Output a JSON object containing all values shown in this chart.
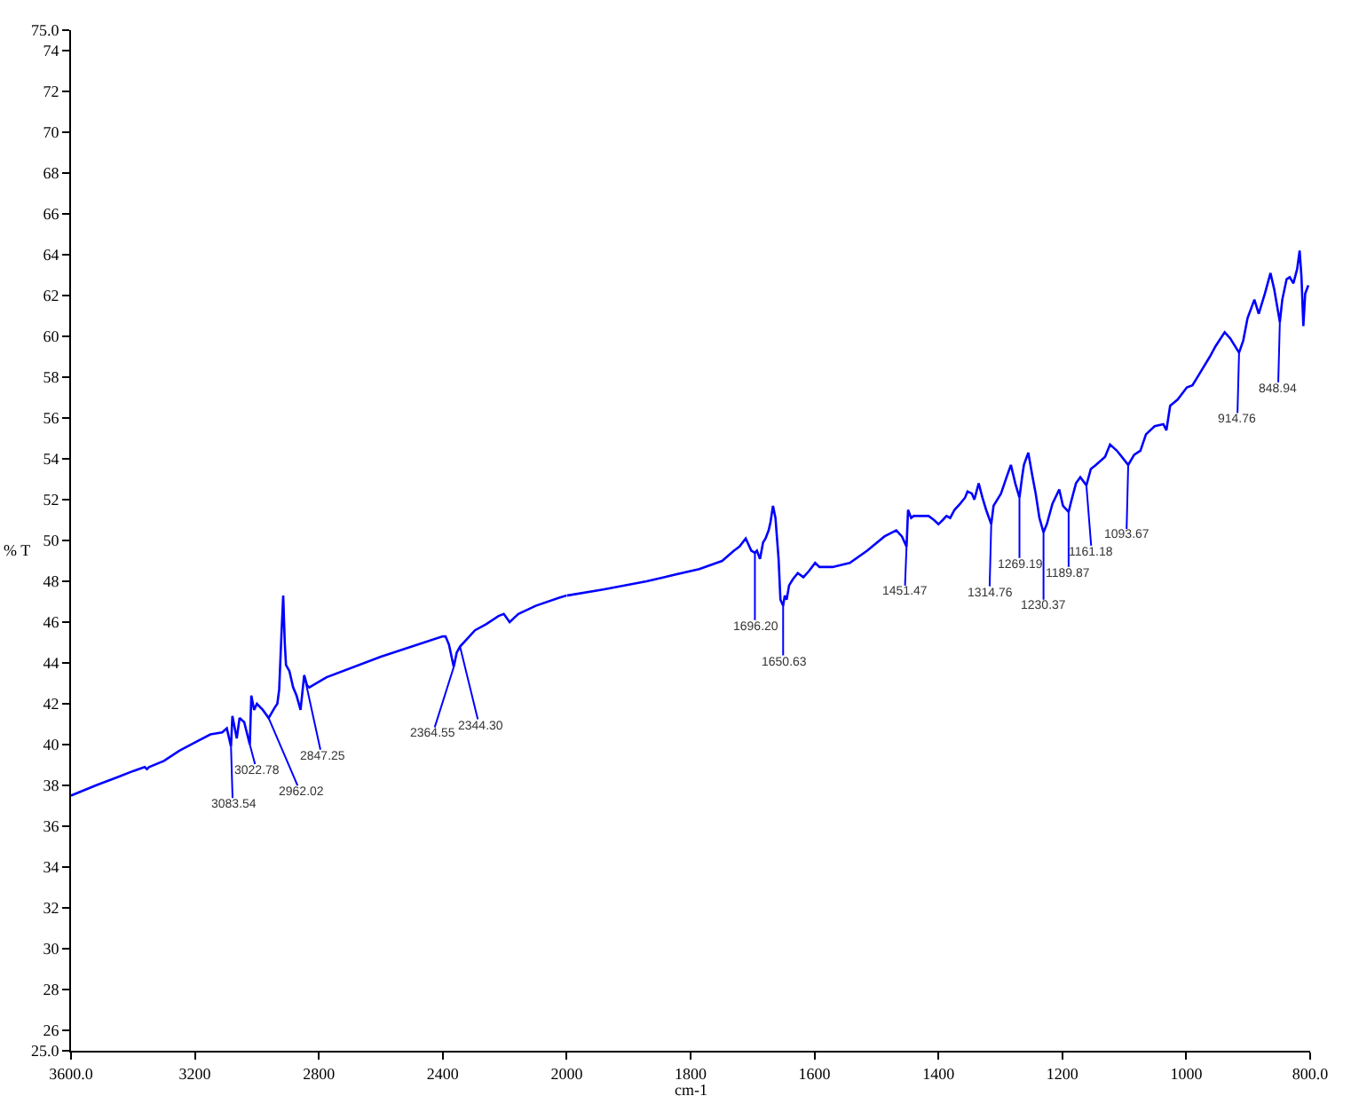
{
  "chart_data": [
    {
      "type": "line",
      "ylabel": "% T",
      "color": "#0000ff",
      "x": [
        3600,
        3520,
        3450,
        3400,
        3362,
        3355,
        3348,
        3300,
        3250,
        3200,
        3150,
        3112,
        3097,
        3083.54,
        3079,
        3065,
        3056,
        3041,
        3022.78,
        3018,
        3009,
        3000,
        2981,
        2962.02,
        2943,
        2934,
        2928,
        2921,
        2915,
        2910,
        2906,
        2895,
        2883,
        2872,
        2859,
        2847.25,
        2838,
        2831,
        2775,
        2600,
        2500,
        2400,
        2391,
        2380,
        2364.55,
        2355,
        2344.3,
        2320,
        2296,
        2260,
        2220,
        2203,
        2184,
        2170,
        2156,
        2100,
        2024,
        2000
      ],
      "values": [
        37.5,
        38.0,
        38.4,
        38.7,
        38.9,
        38.8,
        38.9,
        39.2,
        39.7,
        40.1,
        40.5,
        40.6,
        40.8,
        39.9,
        41.4,
        40.3,
        41.3,
        41.1,
        40.0,
        42.4,
        41.7,
        42.0,
        41.7,
        41.3,
        41.8,
        42.0,
        42.7,
        45.3,
        47.3,
        45.0,
        43.9,
        43.6,
        42.8,
        42.4,
        41.7,
        43.4,
        42.9,
        42.8,
        43.3,
        44.3,
        44.8,
        45.3,
        45.3,
        44.9,
        43.8,
        44.5,
        44.8,
        45.2,
        45.6,
        45.9,
        46.3,
        46.4,
        46.0,
        46.2,
        46.4,
        46.8,
        47.2,
        47.3
      ],
      "xlim": [
        3600,
        2000
      ],
      "xticks": [
        {
          "value": 3600,
          "label": "3600.0"
        },
        3200,
        2800,
        2400
      ],
      "ylim": [
        25,
        75
      ],
      "yticks": [
        {
          "value": 25,
          "label": "25.0"
        },
        26,
        28,
        30,
        32,
        34,
        36,
        38,
        40,
        42,
        44,
        46,
        48,
        50,
        52,
        54,
        56,
        58,
        60,
        62,
        64,
        66,
        68,
        70,
        72,
        74,
        {
          "value": 75,
          "label": "75.0"
        }
      ],
      "annotations": [
        {
          "text": "3083.54",
          "x": 3083.54,
          "y": 39.9
        },
        {
          "text": "3022.78",
          "x": 3022.78,
          "y": 40.0
        },
        {
          "text": "2962.02",
          "x": 2962.02,
          "y": 41.3
        },
        {
          "text": "2847.25",
          "x": 2847.25,
          "y": 43.4
        },
        {
          "text": "2364.55",
          "x": 2364.55,
          "y": 43.8
        },
        {
          "text": "2344.30",
          "x": 2344.3,
          "y": 44.8
        }
      ]
    },
    {
      "type": "line",
      "xlabel": "cm-1",
      "color": "#0000ff",
      "tick_labels": "x",
      "x": [
        2000,
        1941,
        1871,
        1843,
        1786,
        1749,
        1730,
        1721,
        1711,
        1702,
        1696.2,
        1693,
        1688,
        1683,
        1679,
        1674,
        1671,
        1667,
        1663,
        1658,
        1655,
        1650.63,
        1648,
        1645,
        1641,
        1635,
        1627,
        1618,
        1609,
        1599,
        1592,
        1571,
        1543,
        1515,
        1487,
        1468,
        1459,
        1451.47,
        1449,
        1444,
        1440,
        1416,
        1407,
        1400,
        1393,
        1387,
        1381,
        1374,
        1365,
        1357,
        1353,
        1346,
        1342,
        1335,
        1329,
        1323,
        1314.76,
        1311,
        1299,
        1290,
        1283,
        1276,
        1269.19,
        1265,
        1262,
        1255,
        1248,
        1243,
        1237,
        1230.37,
        1225,
        1216,
        1205,
        1199,
        1189.87,
        1185,
        1178,
        1171,
        1161.18,
        1154,
        1146,
        1131,
        1123,
        1112,
        1093.67,
        1084,
        1074,
        1065,
        1051,
        1037,
        1032,
        1026,
        1014,
        999,
        990,
        976,
        962,
        953,
        938,
        929,
        914.76,
        908,
        901,
        890,
        883,
        873,
        864,
        858,
        848.94,
        845,
        838,
        833,
        827,
        821,
        817,
        814,
        811,
        808,
        803
      ],
      "values": [
        47.3,
        47.6,
        48.0,
        48.2,
        48.6,
        49.0,
        49.5,
        49.7,
        50.1,
        49.5,
        49.4,
        49.5,
        49.1,
        49.9,
        50.1,
        50.5,
        50.9,
        51.7,
        51.1,
        49.1,
        47.1,
        46.8,
        47.3,
        47.1,
        47.8,
        48.1,
        48.4,
        48.2,
        48.5,
        48.9,
        48.7,
        48.7,
        48.9,
        49.5,
        50.2,
        50.5,
        50.2,
        49.7,
        51.5,
        51.1,
        51.2,
        51.2,
        51.0,
        50.8,
        51.0,
        51.2,
        51.1,
        51.5,
        51.8,
        52.1,
        52.4,
        52.3,
        52.0,
        52.8,
        52.1,
        51.5,
        50.8,
        51.7,
        52.3,
        53.1,
        53.7,
        52.8,
        52.1,
        53.1,
        53.7,
        54.3,
        53.1,
        52.3,
        51.1,
        50.4,
        50.8,
        51.8,
        52.5,
        51.7,
        51.4,
        52.0,
        52.8,
        53.1,
        52.7,
        53.5,
        53.7,
        54.1,
        54.7,
        54.4,
        53.7,
        54.2,
        54.4,
        55.2,
        55.6,
        55.7,
        55.4,
        56.6,
        56.9,
        57.5,
        57.6,
        58.3,
        59.0,
        59.5,
        60.2,
        59.9,
        59.2,
        59.8,
        60.9,
        61.8,
        61.1,
        62.1,
        63.1,
        62.3,
        60.7,
        61.8,
        62.8,
        62.9,
        62.6,
        63.3,
        64.2,
        62.9,
        60.5,
        62.1,
        62.5
      ],
      "xlim": [
        2000,
        800
      ],
      "xticks": [
        2000,
        1800,
        1600,
        1400,
        1200,
        1000,
        {
          "value": 800,
          "label": "800.0"
        }
      ],
      "ylim": [
        25,
        75
      ],
      "annotations": [
        {
          "text": "1696.20",
          "x": 1696.2,
          "y": 49.4
        },
        {
          "text": "1650.63",
          "x": 1650.63,
          "y": 46.8
        },
        {
          "text": "1451.47",
          "x": 1451.47,
          "y": 49.7
        },
        {
          "text": "1314.76",
          "x": 1314.76,
          "y": 50.8
        },
        {
          "text": "1269.19",
          "x": 1269.19,
          "y": 52.1
        },
        {
          "text": "1230.37",
          "x": 1230.37,
          "y": 50.4
        },
        {
          "text": "1189.87",
          "x": 1189.87,
          "y": 51.4
        },
        {
          "text": "1161.18",
          "x": 1161.18,
          "y": 52.7
        },
        {
          "text": "1093.67",
          "x": 1093.67,
          "y": 53.7
        },
        {
          "text": "914.76",
          "x": 914.76,
          "y": 59.2
        },
        {
          "text": "848.94",
          "x": 848.94,
          "y": 60.7
        }
      ]
    }
  ]
}
